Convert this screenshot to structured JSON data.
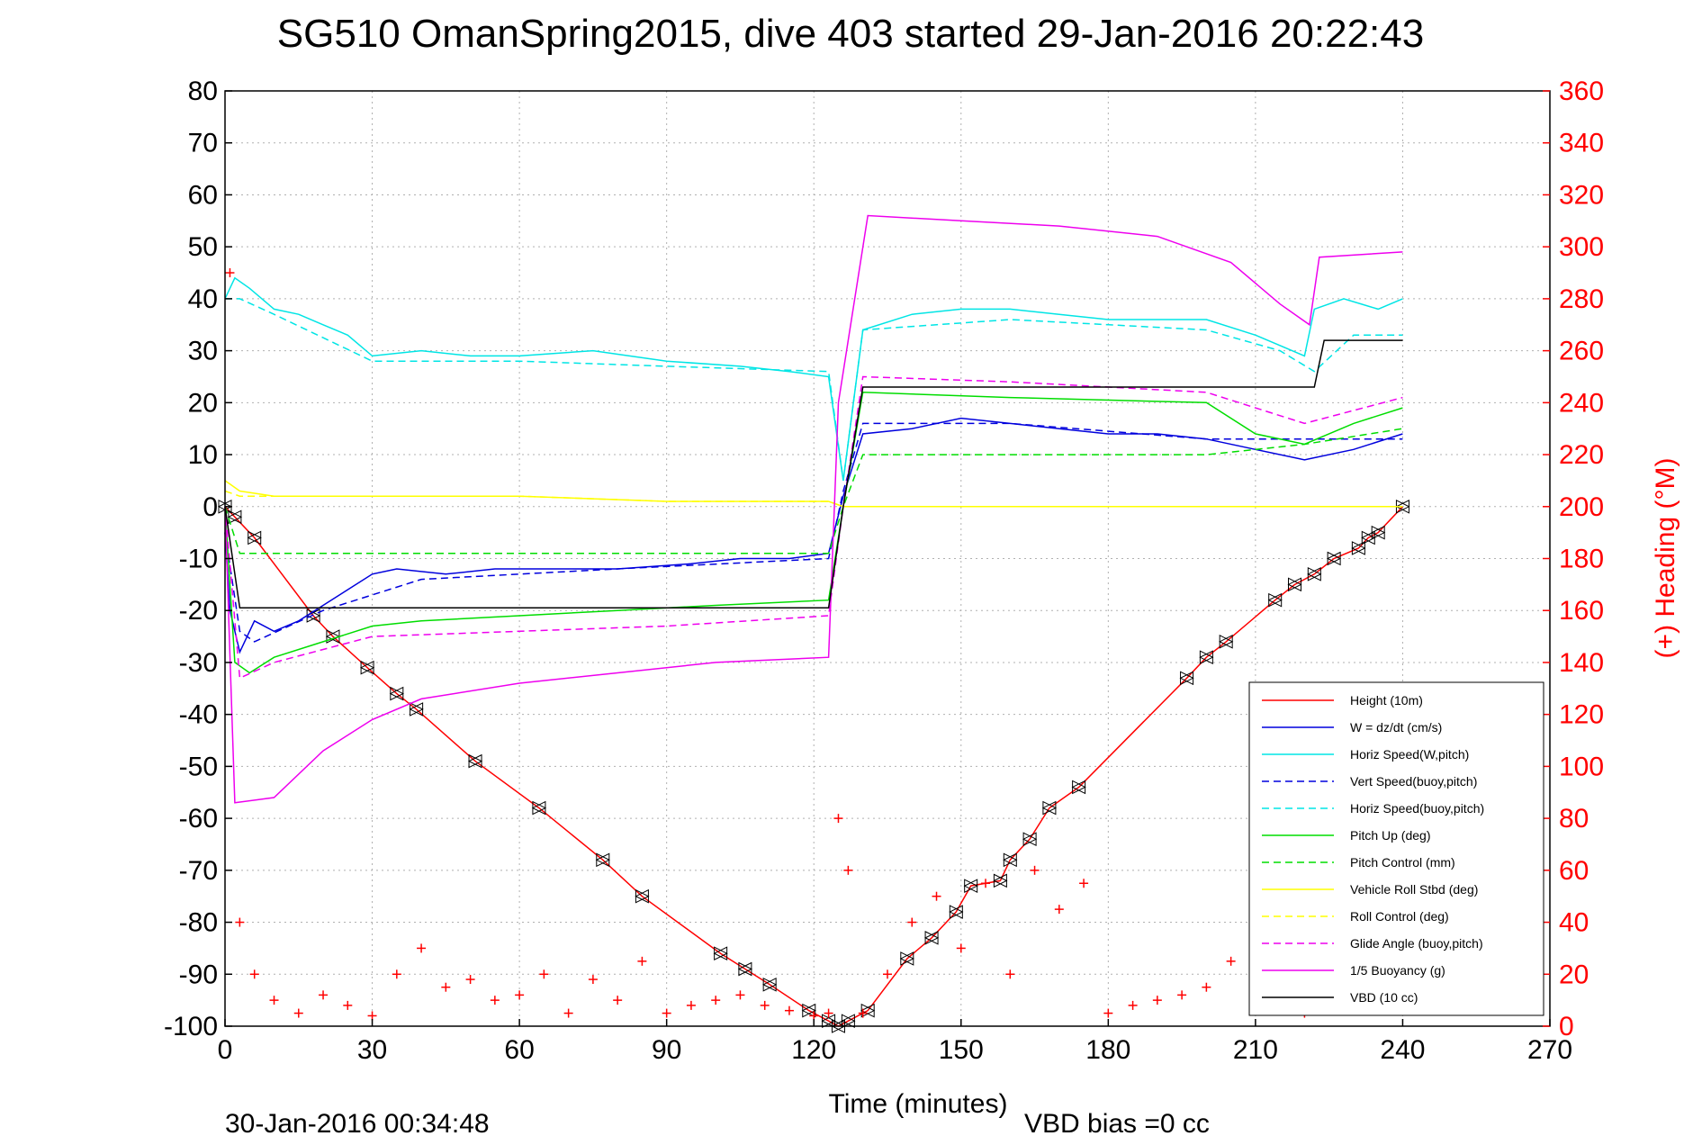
{
  "chart_data": {
    "type": "line",
    "title": "SG510 OmanSpring2015, dive 403 started 29-Jan-2016 20:22:43",
    "xlabel": "Time (minutes)",
    "ylabel_right": "(+) Heading (°M)",
    "footer_left": "30-Jan-2016 00:34:48",
    "footer_right": "VBD bias =0 cc",
    "xlim": [
      0,
      270
    ],
    "ylim": [
      -100,
      80
    ],
    "ylim_right": [
      0,
      360
    ],
    "x_ticks": [
      "0",
      "30",
      "60",
      "90",
      "120",
      "150",
      "180",
      "210",
      "240",
      "270"
    ],
    "y_ticks": [
      "80",
      "70",
      "60",
      "50",
      "40",
      "30",
      "20",
      "10",
      "0",
      "-10",
      "-20",
      "-30",
      "-40",
      "-50",
      "-60",
      "-70",
      "-80",
      "-90",
      "-100"
    ],
    "y_ticks_right": [
      "360",
      "340",
      "320",
      "300",
      "280",
      "260",
      "240",
      "220",
      "200",
      "180",
      "160",
      "140",
      "120",
      "100",
      "80",
      "60",
      "40",
      "20",
      "0"
    ],
    "grid": true,
    "legend_position": "bottom-right",
    "series": [
      {
        "name": "Height (10m)",
        "color": "#ff0000",
        "style": "solid",
        "x": [
          0,
          2,
          6,
          18,
          22,
          29,
          35,
          39,
          51,
          64,
          77,
          85,
          101,
          106,
          111,
          119,
          123,
          125,
          127,
          131,
          139,
          144,
          149,
          152,
          158,
          160,
          164,
          168,
          174,
          196,
          200,
          204,
          214,
          218,
          222,
          226,
          231,
          233,
          235,
          240
        ],
        "y": [
          0,
          -2,
          -6,
          -21,
          -25,
          -31,
          -36,
          -39,
          -49,
          -58,
          -68,
          -75,
          -86,
          -89,
          -92,
          -97,
          -99,
          -100,
          -99,
          -97,
          -87,
          -83,
          -78,
          -73,
          -72,
          -68,
          -64,
          -58,
          -54,
          -33,
          -29,
          -26,
          -18,
          -15,
          -13,
          -10,
          -8,
          -6,
          -5,
          0
        ]
      },
      {
        "name": "W = dz/dt (cm/s)",
        "color": "#0000dd",
        "style": "solid",
        "x": [
          0,
          1,
          3,
          6,
          10,
          15,
          20,
          25,
          30,
          35,
          45,
          55,
          65,
          80,
          95,
          105,
          115,
          123,
          126,
          130,
          140,
          150,
          160,
          170,
          180,
          190,
          200,
          210,
          220,
          230,
          240
        ],
        "y": [
          -5,
          -20,
          -28,
          -22,
          -24,
          -22,
          -19,
          -16,
          -13,
          -12,
          -13,
          -12,
          -12,
          -12,
          -11,
          -10,
          -10,
          -9,
          2,
          14,
          15,
          17,
          16,
          15,
          14,
          14,
          13,
          11,
          9,
          11,
          14
        ]
      },
      {
        "name": "Horiz Speed(W,pitch)",
        "color": "#00e5e5",
        "style": "solid",
        "x": [
          0,
          2,
          5,
          10,
          15,
          20,
          25,
          30,
          40,
          50,
          60,
          75,
          90,
          105,
          115,
          123,
          126,
          130,
          140,
          150,
          160,
          170,
          180,
          190,
          200,
          210,
          220,
          222,
          228,
          235,
          240
        ],
        "y": [
          40,
          44,
          42,
          38,
          37,
          35,
          33,
          29,
          30,
          29,
          29,
          30,
          28,
          27,
          26,
          25,
          5,
          34,
          37,
          38,
          38,
          37,
          36,
          36,
          36,
          33,
          29,
          38,
          40,
          38,
          40
        ]
      },
      {
        "name": "Vert Speed(buoy,pitch)",
        "color": "#0000dd",
        "style": "dashed",
        "x": [
          0,
          3,
          6,
          20,
          40,
          80,
          123,
          126,
          130,
          160,
          200,
          240
        ],
        "y": [
          -5,
          -24,
          -26,
          -20,
          -14,
          -12,
          -10,
          3,
          16,
          16,
          13,
          13
        ]
      },
      {
        "name": "Horiz Speed(buoy,pitch)",
        "color": "#00e5e5",
        "style": "dashed",
        "x": [
          0,
          3,
          10,
          30,
          60,
          90,
          123,
          126,
          130,
          160,
          200,
          215,
          222,
          230,
          240
        ],
        "y": [
          40,
          40,
          37,
          28,
          28,
          27,
          26,
          5,
          34,
          36,
          34,
          30,
          26,
          33,
          33
        ]
      },
      {
        "name": "Pitch Up (deg)",
        "color": "#00dd00",
        "style": "solid",
        "x": [
          0,
          2,
          5,
          10,
          20,
          30,
          40,
          60,
          80,
          100,
          123,
          126,
          130,
          160,
          200,
          210,
          220,
          230,
          240
        ],
        "y": [
          0,
          -30,
          -32,
          -29,
          -26,
          -23,
          -22,
          -21,
          -20,
          -19,
          -18,
          0,
          22,
          21,
          20,
          14,
          12,
          16,
          19
        ]
      },
      {
        "name": "Pitch Control (mm)",
        "color": "#00dd00",
        "style": "dashed",
        "x": [
          0,
          3,
          20,
          40,
          123,
          126,
          130,
          200,
          220,
          240
        ],
        "y": [
          0,
          -9,
          -9,
          -9,
          -9,
          0,
          10,
          10,
          12,
          15
        ]
      },
      {
        "name": "Vehicle Roll Stbd (deg)",
        "color": "#ffff00",
        "style": "solid",
        "x": [
          0,
          3,
          10,
          30,
          60,
          90,
          123,
          126,
          160,
          200,
          240
        ],
        "y": [
          5,
          3,
          2,
          2,
          2,
          1,
          1,
          0,
          0,
          0,
          0
        ]
      },
      {
        "name": "Roll Control (deg)",
        "color": "#ffff00",
        "style": "dashed",
        "x": [
          0,
          3,
          30,
          60,
          90,
          123,
          126,
          160,
          200,
          240
        ],
        "y": [
          3,
          2,
          2,
          2,
          1,
          1,
          0,
          0,
          0,
          0
        ]
      },
      {
        "name": "Glide Angle (buoy,pitch)",
        "color": "#ee00ee",
        "style": "dashed",
        "x": [
          0,
          3,
          10,
          30,
          60,
          90,
          123,
          126,
          130,
          160,
          200,
          220,
          240
        ],
        "y": [
          0,
          -33,
          -30,
          -25,
          -24,
          -23,
          -21,
          0,
          25,
          24,
          22,
          16,
          21
        ]
      },
      {
        "name": "1/5 Buoyancy (g)",
        "color": "#ee00ee",
        "style": "solid",
        "x": [
          0,
          2,
          10,
          20,
          30,
          40,
          60,
          80,
          100,
          123,
          125,
          131,
          150,
          170,
          190,
          205,
          215,
          221,
          223,
          240
        ],
        "y": [
          0,
          -57,
          -56,
          -47,
          -41,
          -37,
          -34,
          -32,
          -30,
          -29,
          20,
          56,
          55,
          54,
          52,
          47,
          39,
          35,
          48,
          49
        ]
      },
      {
        "name": "VBD (10 cc)",
        "color": "#000000",
        "style": "solid",
        "x": [
          0,
          3,
          123,
          126,
          130,
          222,
          224,
          240
        ],
        "y": [
          0,
          -19.5,
          -19.5,
          0,
          23,
          23,
          32,
          32
        ]
      },
      {
        "name": "Heading",
        "color": "#ff0000",
        "style": "markers",
        "axis": "right",
        "x": [
          1,
          3,
          6,
          10,
          15,
          20,
          25,
          30,
          35,
          40,
          45,
          50,
          55,
          60,
          65,
          70,
          75,
          80,
          85,
          90,
          95,
          100,
          105,
          110,
          115,
          120,
          123,
          125,
          127,
          130,
          135,
          140,
          145,
          150,
          155,
          160,
          165,
          170,
          175,
          180,
          185,
          190,
          195,
          200,
          205,
          210,
          215,
          220,
          225,
          230,
          235
        ],
        "y": [
          290,
          40,
          20,
          10,
          5,
          12,
          8,
          4,
          20,
          30,
          15,
          18,
          10,
          12,
          20,
          5,
          18,
          10,
          25,
          5,
          8,
          10,
          12,
          8,
          6,
          4,
          5,
          80,
          60,
          5,
          20,
          40,
          50,
          30,
          55,
          20,
          60,
          45,
          55,
          5,
          8,
          10,
          12,
          15,
          25,
          10,
          8,
          5,
          6,
          8,
          8
        ]
      }
    ]
  }
}
